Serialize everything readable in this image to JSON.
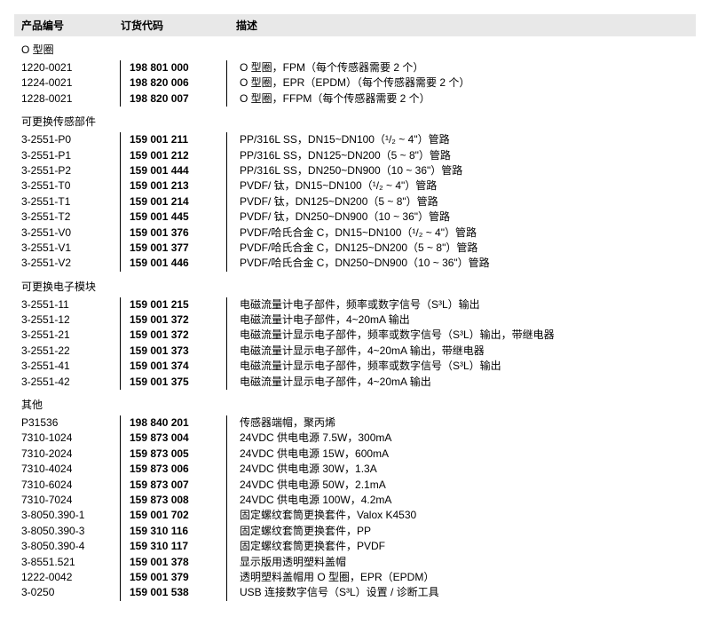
{
  "headers": {
    "product_no": "产品编号",
    "order_code": "订货代码",
    "description": "描述"
  },
  "sections": [
    {
      "title": "O 型圈",
      "rows": [
        {
          "pn": "1220-0021",
          "code": "198 801 000",
          "desc": "O 型圈，FPM（每个传感器需要 2 个）"
        },
        {
          "pn": "1224-0021",
          "code": "198 820 006",
          "desc": "O 型圈，EPR（EPDM）（每个传感器需要 2 个）"
        },
        {
          "pn": "1228-0021",
          "code": "198 820 007",
          "desc": "O 型圈，FFPM（每个传感器需要 2 个）"
        }
      ]
    },
    {
      "title": "可更换传感部件",
      "rows": [
        {
          "pn": "3-2551-P0",
          "code": "159 001 211",
          "desc": "PP/316L SS，DN15~DN100（¹/₂ ~ 4\"）管路"
        },
        {
          "pn": "3-2551-P1",
          "code": "159 001 212",
          "desc": "PP/316L SS，DN125~DN200（5 ~ 8\"）管路"
        },
        {
          "pn": "3-2551-P2",
          "code": "159 001 444",
          "desc": "PP/316L SS，DN250~DN900（10 ~ 36\"）管路"
        },
        {
          "pn": "3-2551-T0",
          "code": "159 001 213",
          "desc": "PVDF/ 钛，DN15~DN100（¹/₂ ~ 4\"）管路"
        },
        {
          "pn": "3-2551-T1",
          "code": "159 001 214",
          "desc": "PVDF/ 钛，DN125~DN200（5 ~ 8\"）管路"
        },
        {
          "pn": "3-2551-T2",
          "code": "159 001 445",
          "desc": "PVDF/ 钛，DN250~DN900（10 ~ 36\"）管路"
        },
        {
          "pn": "3-2551-V0",
          "code": "159 001 376",
          "desc": "PVDF/哈氏合金 C，DN15~DN100（¹/₂ ~ 4\"）管路"
        },
        {
          "pn": "3-2551-V1",
          "code": "159 001 377",
          "desc": "PVDF/哈氏合金 C，DN125~DN200（5 ~ 8\"）管路"
        },
        {
          "pn": "3-2551-V2",
          "code": "159 001 446",
          "desc": "PVDF/哈氏合金 C，DN250~DN900（10 ~ 36\"）管路"
        }
      ]
    },
    {
      "title": "可更换电子模块",
      "rows": [
        {
          "pn": "3-2551-11",
          "code": "159 001 215",
          "desc": "电磁流量计电子部件，频率或数字信号（S³L）输出"
        },
        {
          "pn": "3-2551-12",
          "code": "159 001 372",
          "desc": "电磁流量计电子部件，4~20mA 输出"
        },
        {
          "pn": "3-2551-21",
          "code": "159 001 372",
          "desc": "电磁流量计显示电子部件，频率或数字信号（S³L）输出，带继电器"
        },
        {
          "pn": "3-2551-22",
          "code": "159 001 373",
          "desc": "电磁流量计显示电子部件，4~20mA 输出，带继电器"
        },
        {
          "pn": "3-2551-41",
          "code": "159 001 374",
          "desc": "电磁流量计显示电子部件，频率或数字信号（S³L）输出"
        },
        {
          "pn": "3-2551-42",
          "code": "159 001 375",
          "desc": "电磁流量计显示电子部件，4~20mA 输出"
        }
      ]
    },
    {
      "title": "其他",
      "rows": [
        {
          "pn": "P31536",
          "code": "198 840 201",
          "desc": "传感器端帽，聚丙烯"
        },
        {
          "pn": "7310-1024",
          "code": "159 873 004",
          "desc": "24VDC 供电电源 7.5W，300mA"
        },
        {
          "pn": "7310-2024",
          "code": "159 873 005",
          "desc": "24VDC 供电电源 15W，600mA"
        },
        {
          "pn": "7310-4024",
          "code": "159 873 006",
          "desc": "24VDC 供电电源 30W，1.3A"
        },
        {
          "pn": "7310-6024",
          "code": "159 873 007",
          "desc": "24VDC 供电电源 50W，2.1mA"
        },
        {
          "pn": "7310-7024",
          "code": "159 873 008",
          "desc": "24VDC 供电电源 100W，4.2mA"
        },
        {
          "pn": "3-8050.390-1",
          "code": "159 001 702",
          "desc": "固定螺纹套筒更换套件，Valox K4530"
        },
        {
          "pn": "3-8050.390-3",
          "code": "159 310 116",
          "desc": "固定螺纹套筒更换套件，PP"
        },
        {
          "pn": "3-8050.390-4",
          "code": "159 310 117",
          "desc": "固定螺纹套筒更换套件，PVDF"
        },
        {
          "pn": "3-8551.521",
          "code": "159 001 378",
          "desc": "显示版用透明塑料盖帽"
        },
        {
          "pn": "1222-0042",
          "code": "159 001 379",
          "desc": "透明塑料盖帽用 O 型圈，EPR（EPDM）"
        },
        {
          "pn": "3-0250",
          "code": "159 001 538",
          "desc": "USB 连接数字信号（S³L）设置 / 诊断工具"
        }
      ]
    }
  ]
}
